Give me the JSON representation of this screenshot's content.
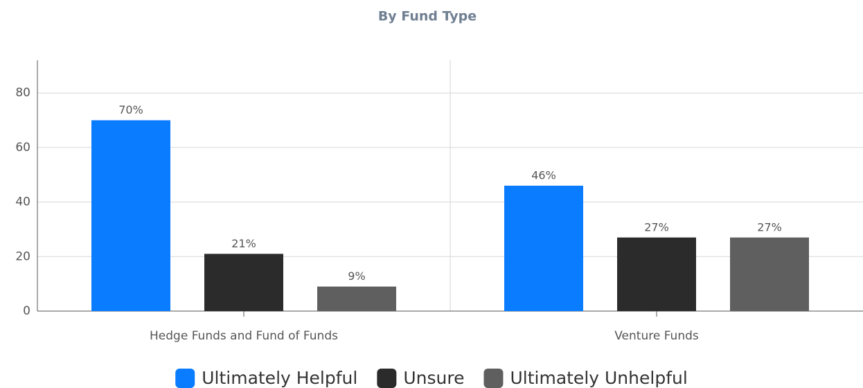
{
  "chart_data": {
    "type": "bar",
    "title": "By Fund Type",
    "categories": [
      "Hedge Funds and Fund of Funds",
      "Venture Funds"
    ],
    "series": [
      {
        "name": "Ultimately Helpful",
        "color": "#0a7cff",
        "values": [
          70,
          46
        ],
        "value_labels": [
          "70%",
          "46%"
        ]
      },
      {
        "name": "Unsure",
        "color": "#2b2b2b",
        "values": [
          21,
          27
        ],
        "value_labels": [
          "21%",
          "27%"
        ]
      },
      {
        "name": "Ultimately Unhelpful",
        "color": "#5f5f5f",
        "values": [
          9,
          27
        ],
        "value_labels": [
          "9%",
          "27%"
        ]
      }
    ],
    "ylim": [
      0,
      92
    ],
    "yticks": [
      0,
      20,
      40,
      60,
      80
    ],
    "grid": true,
    "legend": "bottom"
  }
}
